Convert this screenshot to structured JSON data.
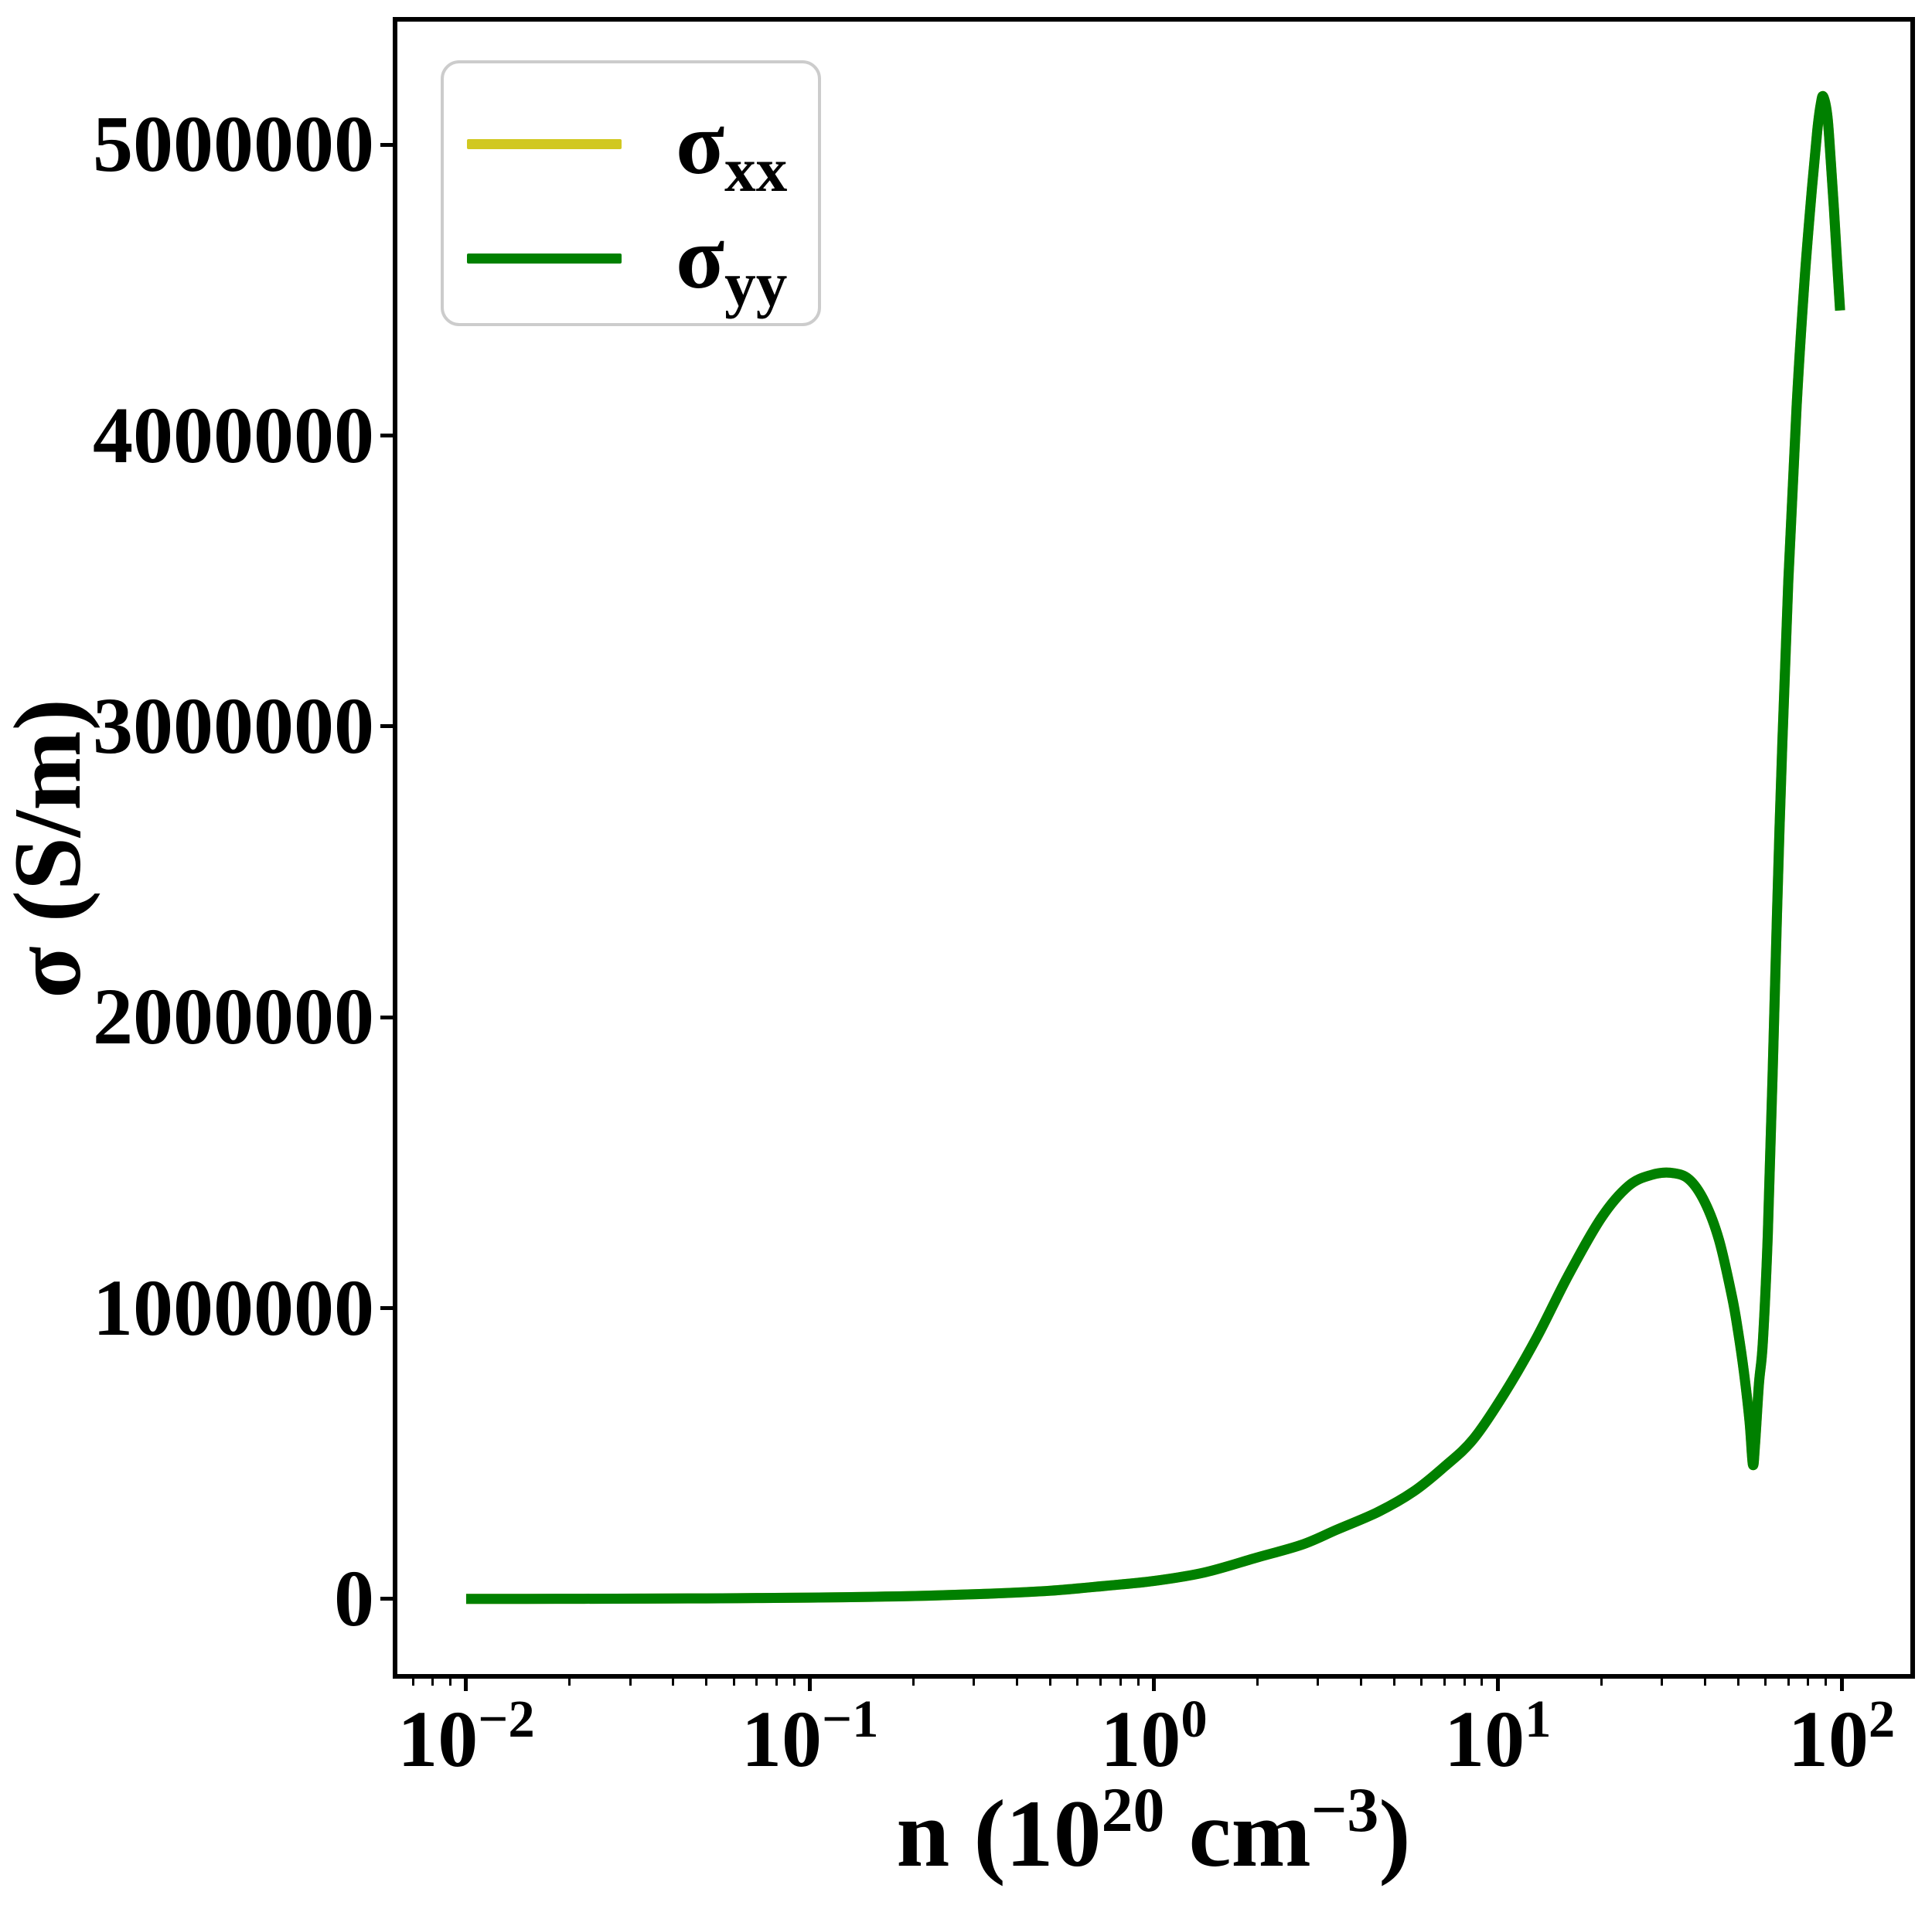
{
  "chart_data": {
    "type": "line",
    "title": "",
    "xlabel_plain": "n (10^20 cm^-3)",
    "xlabel_parts": [
      {
        "t": "n (10"
      },
      {
        "sup": "20"
      },
      {
        "t": " cm"
      },
      {
        "sup": "−3"
      },
      {
        "t": ")"
      }
    ],
    "ylabel": "σ (S/m)",
    "x_scale": "log",
    "grid": false,
    "x_tick_exponents": [
      -2,
      -1,
      0,
      1,
      2
    ],
    "x_tick_label_base": "10",
    "y_ticks": [
      {
        "value": 0,
        "label": "0"
      },
      {
        "value": 1000000,
        "label": "1000000"
      },
      {
        "value": 2000000,
        "label": "2000000"
      },
      {
        "value": 3000000,
        "label": "3000000"
      },
      {
        "value": 4000000,
        "label": "4000000"
      },
      {
        "value": 5000000,
        "label": "5000000"
      }
    ],
    "x_log_range": [
      -2.2,
      2.2
    ],
    "y_range": [
      -258000,
      5423000
    ],
    "x_data_range": [
      0.01,
      100
    ],
    "legend": {
      "position": "upper-left",
      "items": [
        {
          "label_base": "σ",
          "label_sub": "xx",
          "color": "#d1c821"
        },
        {
          "label_base": "σ",
          "label_sub": "yy",
          "color": "#008000"
        }
      ]
    },
    "series": [
      {
        "name": "sigma_xx",
        "color": "#d1c821",
        "points": [
          [
            0.01,
            350
          ],
          [
            0.015,
            560
          ],
          [
            0.022,
            870
          ],
          [
            0.033,
            1400
          ],
          [
            0.05,
            2200
          ],
          [
            0.07,
            3300
          ],
          [
            0.1,
            4700
          ],
          [
            0.15,
            7400
          ],
          [
            0.22,
            11500
          ],
          [
            0.33,
            18000
          ],
          [
            0.5,
            28500
          ],
          [
            0.72,
            45000
          ],
          [
            1.0,
            62000
          ],
          [
            1.4,
            91000
          ],
          [
            2.0,
            143000
          ],
          [
            2.7,
            187000
          ],
          [
            3.4,
            238000
          ],
          [
            4.5,
            300000
          ],
          [
            5.7,
            370000
          ],
          [
            7.0,
            455000
          ],
          [
            8.5,
            550000
          ],
          [
            10.5,
            710000
          ],
          [
            13,
            900000
          ],
          [
            16,
            1110000
          ],
          [
            20,
            1310000
          ],
          [
            24,
            1420000
          ],
          [
            28,
            1458000
          ],
          [
            32,
            1465000
          ],
          [
            36,
            1443000
          ],
          [
            40,
            1365000
          ],
          [
            44,
            1235000
          ],
          [
            48,
            1040000
          ],
          [
            50,
            920000
          ],
          [
            52,
            780000
          ],
          [
            54,
            610000
          ],
          [
            55.2,
            463000
          ],
          [
            56,
            530000
          ],
          [
            57.5,
            740000
          ],
          [
            59,
            880000
          ],
          [
            61,
            1250000
          ],
          [
            63,
            1800000
          ],
          [
            66,
            2650000
          ],
          [
            70,
            3500000
          ],
          [
            74,
            4100000
          ],
          [
            78,
            4530000
          ],
          [
            82,
            4850000
          ],
          [
            85,
            5050000
          ],
          [
            87,
            5140000
          ],
          [
            88.5,
            5165000
          ],
          [
            91,
            5095000
          ],
          [
            93,
            4945000
          ],
          [
            95,
            4780000
          ],
          [
            97,
            4600000
          ],
          [
            99,
            4430000
          ]
        ]
      },
      {
        "name": "sigma_yy",
        "color": "#008000",
        "points": [
          [
            0.01,
            350
          ],
          [
            0.015,
            560
          ],
          [
            0.022,
            870
          ],
          [
            0.033,
            1400
          ],
          [
            0.05,
            2200
          ],
          [
            0.07,
            3300
          ],
          [
            0.1,
            4700
          ],
          [
            0.15,
            7400
          ],
          [
            0.22,
            11500
          ],
          [
            0.33,
            18000
          ],
          [
            0.5,
            28500
          ],
          [
            0.72,
            45000
          ],
          [
            1.0,
            62000
          ],
          [
            1.4,
            91000
          ],
          [
            2.0,
            143000
          ],
          [
            2.7,
            187000
          ],
          [
            3.4,
            238000
          ],
          [
            4.5,
            300000
          ],
          [
            5.7,
            370000
          ],
          [
            7.0,
            455000
          ],
          [
            8.5,
            550000
          ],
          [
            10.5,
            710000
          ],
          [
            13,
            900000
          ],
          [
            16,
            1110000
          ],
          [
            20,
            1310000
          ],
          [
            24,
            1420000
          ],
          [
            28,
            1458000
          ],
          [
            32,
            1465000
          ],
          [
            36,
            1443000
          ],
          [
            40,
            1365000
          ],
          [
            44,
            1235000
          ],
          [
            48,
            1040000
          ],
          [
            50,
            920000
          ],
          [
            52,
            780000
          ],
          [
            54,
            610000
          ],
          [
            55.2,
            463000
          ],
          [
            56,
            530000
          ],
          [
            57.5,
            740000
          ],
          [
            59,
            880000
          ],
          [
            61,
            1250000
          ],
          [
            63,
            1800000
          ],
          [
            66,
            2650000
          ],
          [
            70,
            3500000
          ],
          [
            74,
            4100000
          ],
          [
            78,
            4530000
          ],
          [
            82,
            4850000
          ],
          [
            85,
            5050000
          ],
          [
            87,
            5140000
          ],
          [
            88.5,
            5165000
          ],
          [
            91,
            5095000
          ],
          [
            93,
            4945000
          ],
          [
            95,
            4780000
          ],
          [
            97,
            4600000
          ],
          [
            99,
            4430000
          ]
        ]
      }
    ]
  }
}
